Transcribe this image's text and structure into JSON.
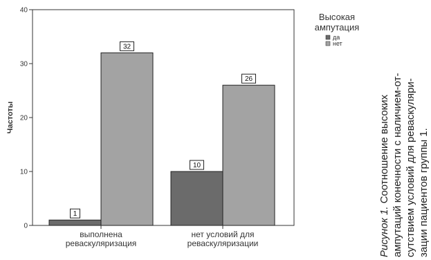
{
  "chart_data": {
    "type": "bar",
    "categories": [
      [
        "выполнена",
        "реваскуляризация"
      ],
      [
        "нет условий для",
        "реваскуляризации"
      ]
    ],
    "series": [
      {
        "name": "да",
        "values": [
          1,
          10
        ],
        "color": "#6b6b6b"
      },
      {
        "name": "нет",
        "values": [
          32,
          26
        ],
        "color": "#a3a3a3"
      }
    ],
    "ylabel": "Частоты",
    "ylim": [
      0,
      40
    ],
    "yticks": [
      0,
      10,
      20,
      30,
      40
    ],
    "legend_title": [
      "Высокая",
      "ампутация"
    ],
    "legend_position": "top-right",
    "grid": false
  },
  "caption": {
    "lines": [
      [
        "Рисунок 1.",
        " Соотношение высоких"
      ],
      [
        "ампутаций конечности с наличием-от-"
      ],
      [
        "сутствием условий для реваскуляри-"
      ],
      [
        "зации пациентов группы 1."
      ]
    ]
  }
}
